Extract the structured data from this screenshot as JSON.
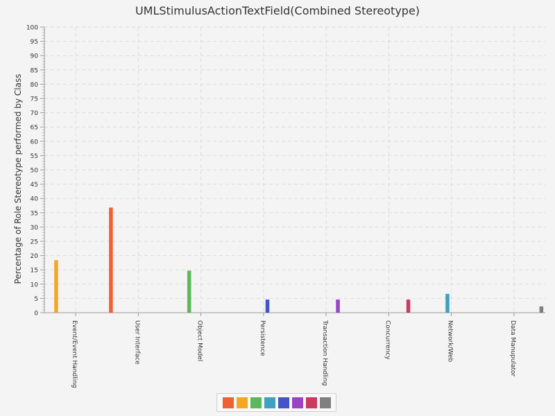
{
  "chart_data": {
    "type": "bar",
    "title": "UMLStimulusActionTextField(Combined Stereotype)",
    "xlabel": "",
    "ylabel": "Percentage of Role Stereotype performed by Class",
    "ylim": [
      0,
      100
    ],
    "yticks": [
      0,
      5,
      10,
      15,
      20,
      25,
      30,
      35,
      40,
      45,
      50,
      55,
      60,
      65,
      70,
      75,
      80,
      85,
      90,
      95,
      100
    ],
    "categories": [
      "Event/Event Handling",
      "User Interface",
      "Object Model",
      "Persistence",
      "Transaction Handling",
      "Concurrency",
      "Network/Web",
      "Data Manupulator"
    ],
    "series": [
      {
        "color": "#f06030",
        "values": [
          0,
          36.8,
          0,
          0,
          0,
          0,
          0,
          0
        ]
      },
      {
        "color": "#f5a623",
        "values": [
          18.4,
          0,
          0,
          0,
          0,
          0,
          0,
          0
        ]
      },
      {
        "color": "#5cb85c",
        "values": [
          0,
          0,
          14.7,
          0,
          0,
          0,
          0,
          0
        ]
      },
      {
        "color": "#3fa0c0",
        "values": [
          0,
          0,
          0,
          0,
          0,
          0,
          6.6,
          0
        ]
      },
      {
        "color": "#4455c8",
        "values": [
          0,
          0,
          0,
          4.6,
          0,
          0,
          0,
          0
        ]
      },
      {
        "color": "#9a44c4",
        "values": [
          0,
          0,
          0,
          0,
          4.6,
          0,
          0,
          0
        ]
      },
      {
        "color": "#cc3a60",
        "values": [
          0,
          0,
          0,
          0,
          0,
          4.6,
          0,
          0
        ]
      },
      {
        "color": "#808080",
        "values": [
          0,
          0,
          0,
          0,
          0,
          0,
          0,
          2.2
        ]
      }
    ],
    "grid": true,
    "legend_position": "bottom"
  }
}
